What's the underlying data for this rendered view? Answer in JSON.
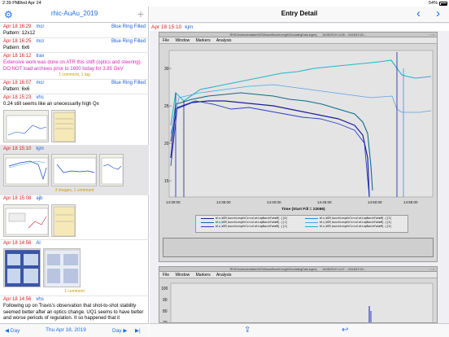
{
  "status": {
    "time": "2:39 PM",
    "date": "Wed Apr 24",
    "battery": "54%"
  },
  "left": {
    "title": "rhic-AuAu_2019",
    "entries": [
      {
        "ts": "Apr 18 16:29",
        "author": "mcr",
        "tag": "Blue Ring Filled",
        "body": "Pattern: 12x12"
      },
      {
        "ts": "Apr 18 16:25",
        "author": "mcr",
        "tag": "Blue Ring Filled",
        "body": "Pattern: 6x6"
      },
      {
        "ts": "Apr 18 16:12",
        "author": "trav",
        "tag": "",
        "body": "Extensive work was done on ATR this shift (optics and steering). DO NOT load archives prior to 1600 today for 3.85 GeV",
        "meta": "1 comment, 1 tag"
      },
      {
        "ts": "Apr 18 16:07",
        "author": "mcr",
        "tag": "Blue Ring Filled",
        "body": "Pattern: 6x6"
      },
      {
        "ts": "Apr 18 15:23",
        "author": "vhs",
        "tag": "",
        "body": "0.24 still seems like an unecessarily high Qx"
      },
      {
        "ts": "Apr 18 15:10",
        "author": "kjm",
        "tag": "",
        "body": "",
        "meta": "3 images, 1 comment"
      },
      {
        "ts": "Apr 18 15:08",
        "author": "ajb",
        "tag": "",
        "body": ""
      },
      {
        "ts": "Apr 18 14:56",
        "author": "Al",
        "tag": "",
        "body": "",
        "meta": "1 comment"
      },
      {
        "ts": "Apr 18 14:56",
        "author": "vhs",
        "tag": "",
        "body": "Following up on Travis's observation that shot-to-shot stability seemed better after an optics change. UQ1 seems to have better and worse periods of regulation.  It so happened that it"
      }
    ],
    "bottom": {
      "prev": "◀ Day",
      "date": "Thu Apr 18, 2019",
      "next": "Day ▶",
      "last": "▶|"
    }
  },
  "right": {
    "title": "Entry Detail",
    "entry_ts": "Apr 18 15:10",
    "entry_author": "kjm",
    "shot1": {
      "titlebar": "RHIC/Instrumentation/WCM/wcmBunchLengthCirculatingData.logreq",
      "titlebar_date": "04/18/2019 14:28 -- 04/18/19 15:...",
      "menu": [
        "File",
        "Window",
        "Markers",
        "Analysis"
      ],
      "xaxis_title": "Time (Start Fill = 23086)",
      "xticks": [
        "14:30:00",
        "14:35:00",
        "14:40:00",
        "14:45:00",
        "14:50:00",
        "14:55:00"
      ],
      "yticks": [
        "30",
        "25",
        "20",
        "15"
      ],
      "legend": [
        "blu_WCM_bunchLengthCirculatingBunchFwhmM[.][0]",
        "blu_WCM_bunchLengthCirculatingBunchFwhmM[.][1]",
        "blu_WCM_bunchLengthCirculatingBunchFwhmM[.][2]",
        "blu_WCM_bunchLengthCirculatingBunchFwhmM[.][3]",
        "blu_WCM_bunchLengthCirculatingBunchFwhmM[.][4]",
        "blu_WCM_bunchLengthCirculatingBunchFwhmM[.][5]"
      ],
      "legend_colors": [
        "#1c1c9c",
        "#0f6a8a",
        "#2a3ccc",
        "#1e8ad6",
        "#5aa0e0",
        "#1ab0c0"
      ]
    },
    "shot2": {
      "titlebar": "RHIC/Instrumentation/WCM/wcmBunchLengthCirculatingData.logreq",
      "titlebar_date": "04/18/2019 14:27 -- 04/18/19 15:...",
      "menu": [
        "File",
        "Window",
        "Markers",
        "Analysis"
      ],
      "yticks": [
        "100",
        "90",
        "80",
        "70"
      ]
    },
    "colors": {
      "accent": "#1a6ee6",
      "timestamp": "#d81b1b",
      "author": "#1a5fd6",
      "meta": "#c99a00",
      "warning": "#e020b8"
    }
  }
}
